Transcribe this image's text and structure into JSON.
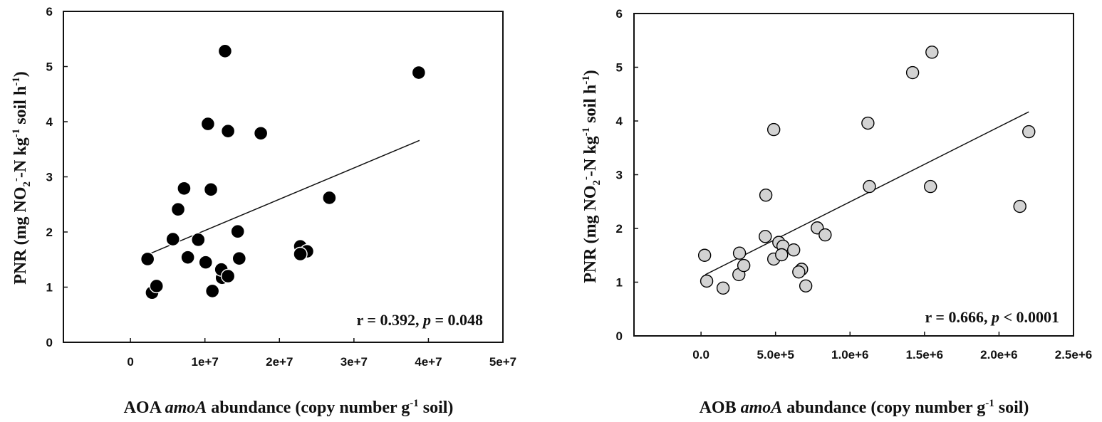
{
  "chart_data": [
    {
      "type": "scatter",
      "title": "",
      "xlabel": "AOA amoA abundance (copy number g-1 soil)",
      "xlabel_parts": {
        "prefix": "AOA ",
        "gene": "amoA",
        "mid": " abundance  (copy number g",
        "sup": "-1",
        "suffix": " soil)"
      },
      "ylabel": "PNR (mg NO2--N kg-1 soil h-1)",
      "xlim": [
        -9000000,
        50000000
      ],
      "ylim": [
        0,
        6
      ],
      "xticks": [
        0,
        10000000,
        20000000,
        30000000,
        40000000,
        50000000
      ],
      "xtick_labels": [
        "0",
        "1e+7",
        "2e+7",
        "3e+7",
        "4e+7",
        "5e+7"
      ],
      "yticks": [
        0,
        1,
        2,
        3,
        4,
        5,
        6
      ],
      "ytick_labels": [
        "0",
        "1",
        "2",
        "3",
        "4",
        "5",
        "6"
      ],
      "grid": false,
      "marker": {
        "fill": "#000000",
        "stroke": "#ffffff"
      },
      "annotation": {
        "r_text": "r = 0.392, ",
        "p_sym": "p",
        "p_text": " = 0.048"
      },
      "trendline": {
        "x": [
          2300000,
          38800000
        ],
        "y": [
          1.59,
          3.66
        ]
      },
      "points": [
        {
          "x": 2300000,
          "y": 1.51
        },
        {
          "x": 2900000,
          "y": 0.9
        },
        {
          "x": 3500000,
          "y": 1.02
        },
        {
          "x": 5700000,
          "y": 1.87
        },
        {
          "x": 6400000,
          "y": 2.41
        },
        {
          "x": 7200000,
          "y": 2.79
        },
        {
          "x": 7700000,
          "y": 1.54
        },
        {
          "x": 9100000,
          "y": 1.86
        },
        {
          "x": 10100000,
          "y": 1.45
        },
        {
          "x": 10400000,
          "y": 3.96
        },
        {
          "x": 10800000,
          "y": 2.77
        },
        {
          "x": 11000000,
          "y": 0.93
        },
        {
          "x": 12300000,
          "y": 1.17
        },
        {
          "x": 12200000,
          "y": 1.32
        },
        {
          "x": 12700000,
          "y": 5.28
        },
        {
          "x": 13100000,
          "y": 3.83
        },
        {
          "x": 13100000,
          "y": 1.2
        },
        {
          "x": 14400000,
          "y": 2.01
        },
        {
          "x": 14600000,
          "y": 1.52
        },
        {
          "x": 17500000,
          "y": 3.79
        },
        {
          "x": 22800000,
          "y": 1.74
        },
        {
          "x": 23700000,
          "y": 1.65
        },
        {
          "x": 22800000,
          "y": 1.6
        },
        {
          "x": 26700000,
          "y": 2.62
        },
        {
          "x": 38700000,
          "y": 4.89
        }
      ]
    },
    {
      "type": "scatter",
      "title": "",
      "xlabel": "AOB amoA abundance (copy number g-1 soil)",
      "xlabel_parts": {
        "prefix": "AOB ",
        "gene": "amoA",
        "mid": " abundance  (copy number g",
        "sup": "-1",
        "suffix": " soil)"
      },
      "ylabel": "PNR (mg NO2--N kg-1 soil h-1)",
      "xlim": [
        -450000,
        2500000
      ],
      "ylim": [
        0,
        6
      ],
      "xticks": [
        0,
        500000,
        1000000,
        1500000,
        2000000,
        2500000
      ],
      "xtick_labels": [
        "0.0",
        "5.0e+5",
        "1.0e+6",
        "1.5e+6",
        "2.0e+6",
        "2.5e+6"
      ],
      "yticks": [
        0,
        1,
        2,
        3,
        4,
        5,
        6
      ],
      "ytick_labels": [
        "0",
        "1",
        "2",
        "3",
        "4",
        "5",
        "6"
      ],
      "grid": false,
      "marker": {
        "fill": "#d3d3d3",
        "stroke": "#000000"
      },
      "annotation": {
        "r_text": "r = 0.666, ",
        "p_sym": "p",
        "p_text": " < 0.0001"
      },
      "trendline": {
        "x": [
          29000,
          2200000
        ],
        "y": [
          1.14,
          4.17
        ]
      },
      "points": [
        {
          "x": 24000,
          "y": 1.5
        },
        {
          "x": 38000,
          "y": 1.02
        },
        {
          "x": 148000,
          "y": 0.89
        },
        {
          "x": 258000,
          "y": 1.54
        },
        {
          "x": 254000,
          "y": 1.14
        },
        {
          "x": 287000,
          "y": 1.31
        },
        {
          "x": 435000,
          "y": 2.62
        },
        {
          "x": 431000,
          "y": 1.85
        },
        {
          "x": 488000,
          "y": 3.84
        },
        {
          "x": 488000,
          "y": 1.43
        },
        {
          "x": 522000,
          "y": 1.74
        },
        {
          "x": 550000,
          "y": 1.67
        },
        {
          "x": 541000,
          "y": 1.51
        },
        {
          "x": 622000,
          "y": 1.6
        },
        {
          "x": 675000,
          "y": 1.24
        },
        {
          "x": 656000,
          "y": 1.19
        },
        {
          "x": 703000,
          "y": 0.93
        },
        {
          "x": 780000,
          "y": 2.01
        },
        {
          "x": 833000,
          "y": 1.88
        },
        {
          "x": 1120000,
          "y": 3.96
        },
        {
          "x": 1130000,
          "y": 2.78
        },
        {
          "x": 1420000,
          "y": 4.9
        },
        {
          "x": 1540000,
          "y": 2.78
        },
        {
          "x": 1550000,
          "y": 5.28
        },
        {
          "x": 2140000,
          "y": 2.41
        },
        {
          "x": 2200000,
          "y": 3.8
        }
      ]
    }
  ],
  "labels": {
    "ylabel_parts": {
      "a": "PNR (mg NO",
      "sub": "2",
      "sup1": "-",
      "b": "-N kg",
      "sup2": "-1",
      "c": " soil h",
      "sup3": "-1",
      "d": ")"
    }
  }
}
